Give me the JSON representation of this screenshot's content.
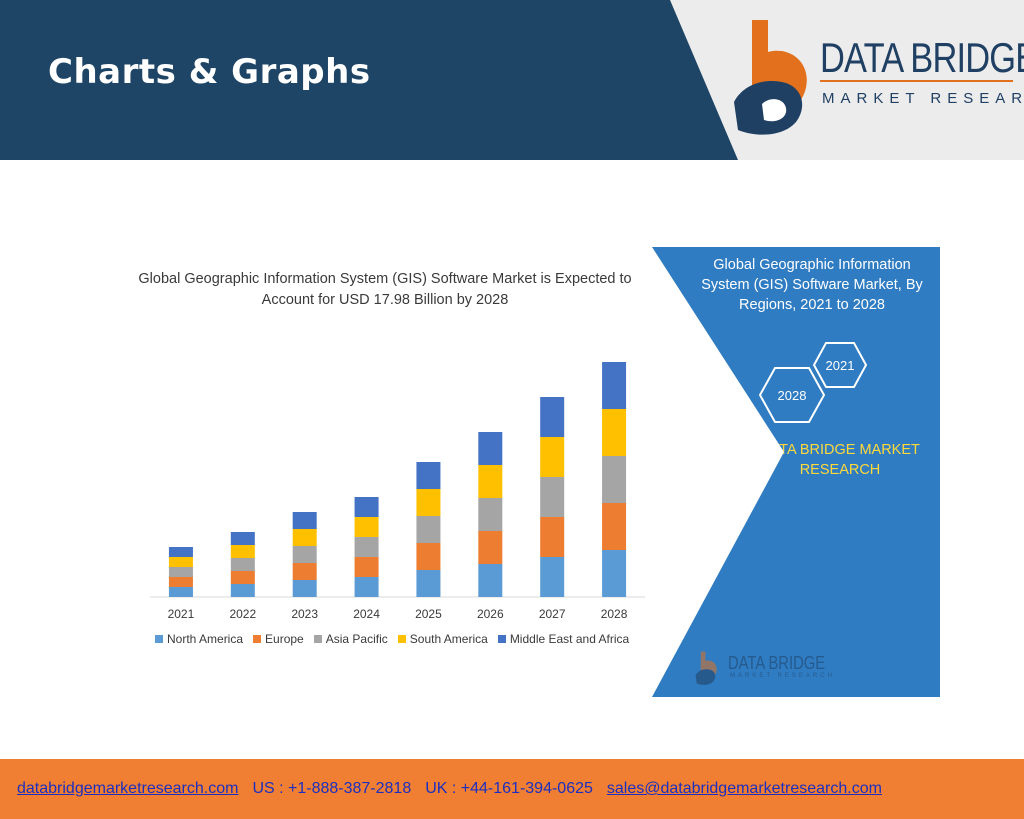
{
  "header": {
    "title": "Charts & Graphs",
    "logo_name": "DATA BRIDGE",
    "logo_subtitle": "MARKET RESEARCH"
  },
  "colors": {
    "header_band": "#1e4466",
    "panel": "#2f7cc2",
    "footer": "#f07f33",
    "link": "#1c2fbf"
  },
  "chart_data": {
    "type": "bar",
    "stacked": true,
    "title": "Global Geographic Information System (GIS) Software Market is Expected to Account for USD 17.98 Billion by 2028",
    "categories": [
      "2021",
      "2022",
      "2023",
      "2024",
      "2025",
      "2026",
      "2027",
      "2028"
    ],
    "series": [
      {
        "name": "North America",
        "color": "#5b9bd5",
        "values": [
          1.0,
          1.3,
          1.7,
          2.0,
          2.7,
          3.3,
          4.0,
          4.7
        ]
      },
      {
        "name": "Europe",
        "color": "#ed7d31",
        "values": [
          1.0,
          1.3,
          1.7,
          2.0,
          2.7,
          3.3,
          4.0,
          4.7
        ]
      },
      {
        "name": "Asia Pacific",
        "color": "#a5a5a5",
        "values": [
          1.0,
          1.3,
          1.7,
          2.0,
          2.7,
          3.3,
          4.0,
          4.7
        ]
      },
      {
        "name": "South America",
        "color": "#ffc000",
        "values": [
          1.0,
          1.3,
          1.7,
          2.0,
          2.7,
          3.3,
          4.0,
          4.7
        ]
      },
      {
        "name": "Middle East and Africa",
        "color": "#4472c4",
        "values": [
          1.0,
          1.3,
          1.7,
          2.0,
          2.7,
          3.3,
          4.0,
          4.7
        ]
      }
    ],
    "ylim": [
      0,
      25
    ],
    "grid": false,
    "legend": "bottom"
  },
  "side_panel": {
    "title": "Global Geographic Information System (GIS) Software Market, By Regions, 2021 to 2028",
    "hex_start": "2021",
    "hex_end": "2028",
    "brand": "DATA BRIDGE MARKET RESEARCH",
    "logo_name": "DATA BRIDGE",
    "logo_subtitle": "MARKET RESEARCH"
  },
  "footer": {
    "website": "databridgemarketresearch.com",
    "us_phone": "US : +1-888-387-2818",
    "uk_phone": "UK : +44-161-394-0625",
    "email": "sales@databridgemarketresearch.com"
  }
}
